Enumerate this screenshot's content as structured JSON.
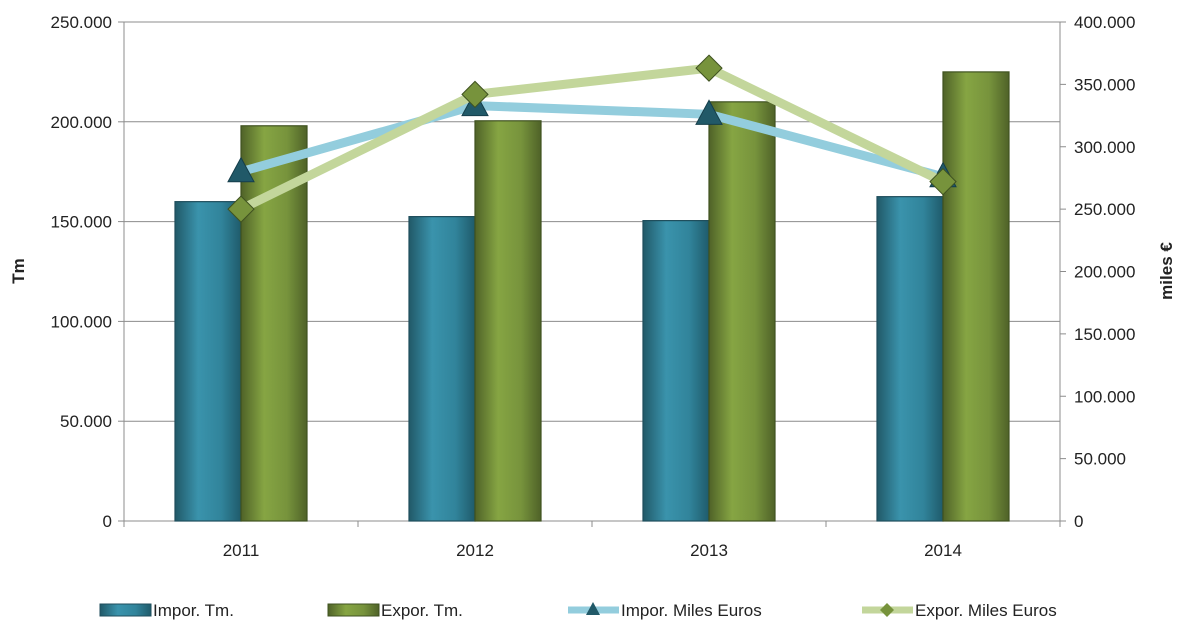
{
  "chart_data": {
    "type": "bar",
    "categories": [
      "2011",
      "2012",
      "2013",
      "2014"
    ],
    "series": [
      {
        "name": "Impor. Tm.",
        "kind": "bar",
        "axis": "left",
        "color": "#31849B",
        "values": [
          160000,
          152500,
          150500,
          162500
        ]
      },
      {
        "name": "Expor. Tm.",
        "kind": "bar",
        "axis": "left",
        "color": "#77933C",
        "values": [
          198000,
          200500,
          210000,
          225000
        ]
      },
      {
        "name": "Impor. Miles Euros",
        "kind": "line",
        "axis": "right",
        "color": "#93CDDD",
        "marker": "triangle",
        "marker_color": "#215968",
        "values": [
          280000,
          333000,
          326000,
          276000
        ]
      },
      {
        "name": "Expor. Miles Euros",
        "kind": "line",
        "axis": "right",
        "color": "#C3D69B",
        "marker": "diamond",
        "marker_color": "#77933C",
        "values": [
          250000,
          342000,
          363000,
          272000
        ]
      }
    ],
    "left_axis": {
      "label": "Tm",
      "range": [
        0,
        250000
      ],
      "ticks": [
        "0",
        "50.000",
        "100.000",
        "150.000",
        "200.000",
        "250.000"
      ]
    },
    "right_axis": {
      "label": "miles €",
      "range": [
        0,
        400000
      ],
      "ticks": [
        "0",
        "50.000",
        "100.000",
        "150.000",
        "200.000",
        "250.000",
        "300.000",
        "350.000",
        "400.000"
      ]
    },
    "grid": true,
    "legend_position": "bottom"
  }
}
